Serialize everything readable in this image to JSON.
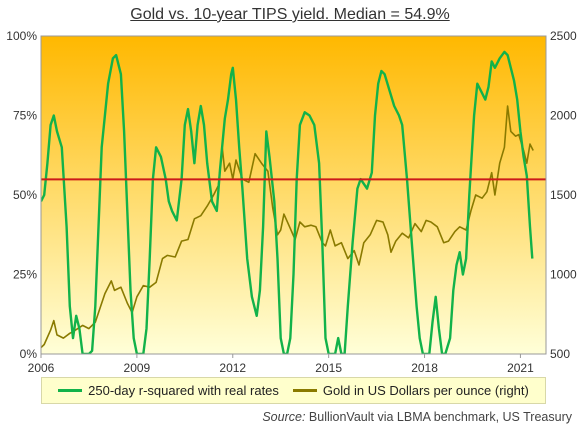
{
  "title": "Gold vs. 10-year TIPS  yield. Median = 54.9%",
  "colors": {
    "rsquared": "#12b24a",
    "gold": "#8a7a00",
    "median": "#cc1a1a",
    "bg_top": "#ffb800",
    "bg_bottom": "#ffffd8"
  },
  "legend": {
    "rsquared_label": "250-day r-squared with real rates",
    "gold_label": "Gold in US Dollars per ounce (right)"
  },
  "source": {
    "prefix": "Source:",
    "text": " BullionVault via LBMA benchmark, US Treasury"
  },
  "chart_data": {
    "type": "line",
    "title": "Gold vs. 10-year TIPS  yield. Median = 54.9%",
    "x_ticks": [
      "2006",
      "2009",
      "2012",
      "2015",
      "2018",
      "2021"
    ],
    "x_tick_values": [
      2006,
      2009,
      2012,
      2015,
      2018,
      2021
    ],
    "xlim": [
      2006,
      2021.8
    ],
    "y_left": {
      "ticks": [
        "0%",
        "25%",
        "50%",
        "75%",
        "100%"
      ],
      "tick_values": [
        0,
        25,
        50,
        75,
        100
      ],
      "lim": [
        0,
        100
      ]
    },
    "y_right": {
      "ticks": [
        "500",
        "1000",
        "1500",
        "2000",
        "2500"
      ],
      "tick_values": [
        500,
        1000,
        1500,
        2000,
        2500
      ],
      "lim": [
        500,
        2500
      ]
    },
    "median": 54.9,
    "grid": false,
    "legend_position": "bottom",
    "series": [
      {
        "name": "250-day r-squared with real rates",
        "axis": "left",
        "points": [
          [
            2006.0,
            48
          ],
          [
            2006.1,
            50
          ],
          [
            2006.2,
            60
          ],
          [
            2006.3,
            72
          ],
          [
            2006.4,
            75
          ],
          [
            2006.5,
            70
          ],
          [
            2006.65,
            65
          ],
          [
            2006.8,
            40
          ],
          [
            2006.9,
            15
          ],
          [
            2007.0,
            5
          ],
          [
            2007.1,
            12
          ],
          [
            2007.2,
            8
          ],
          [
            2007.3,
            0
          ],
          [
            2007.5,
            0
          ],
          [
            2007.6,
            1
          ],
          [
            2007.7,
            15
          ],
          [
            2007.8,
            40
          ],
          [
            2007.9,
            65
          ],
          [
            2008.0,
            75
          ],
          [
            2008.1,
            85
          ],
          [
            2008.25,
            93
          ],
          [
            2008.35,
            94
          ],
          [
            2008.5,
            88
          ],
          [
            2008.6,
            70
          ],
          [
            2008.7,
            45
          ],
          [
            2008.8,
            20
          ],
          [
            2008.9,
            5
          ],
          [
            2009.0,
            0
          ],
          [
            2009.2,
            0
          ],
          [
            2009.3,
            8
          ],
          [
            2009.4,
            30
          ],
          [
            2009.5,
            55
          ],
          [
            2009.6,
            65
          ],
          [
            2009.75,
            62
          ],
          [
            2009.9,
            55
          ],
          [
            2010.0,
            48
          ],
          [
            2010.1,
            45
          ],
          [
            2010.25,
            42
          ],
          [
            2010.4,
            55
          ],
          [
            2010.5,
            72
          ],
          [
            2010.6,
            77
          ],
          [
            2010.7,
            70
          ],
          [
            2010.8,
            60
          ],
          [
            2010.9,
            72
          ],
          [
            2011.0,
            78
          ],
          [
            2011.1,
            72
          ],
          [
            2011.2,
            60
          ],
          [
            2011.35,
            48
          ],
          [
            2011.5,
            45
          ],
          [
            2011.6,
            58
          ],
          [
            2011.75,
            74
          ],
          [
            2011.85,
            80
          ],
          [
            2011.95,
            88
          ],
          [
            2012.0,
            90
          ],
          [
            2012.1,
            80
          ],
          [
            2012.2,
            65
          ],
          [
            2012.3,
            52
          ],
          [
            2012.45,
            30
          ],
          [
            2012.6,
            18
          ],
          [
            2012.75,
            12
          ],
          [
            2012.85,
            20
          ],
          [
            2012.95,
            40
          ],
          [
            2013.05,
            70
          ],
          [
            2013.15,
            62
          ],
          [
            2013.3,
            48
          ],
          [
            2013.4,
            30
          ],
          [
            2013.5,
            5
          ],
          [
            2013.6,
            0
          ],
          [
            2013.7,
            0
          ],
          [
            2013.8,
            5
          ],
          [
            2013.9,
            25
          ],
          [
            2014.0,
            55
          ],
          [
            2014.1,
            72
          ],
          [
            2014.25,
            76
          ],
          [
            2014.4,
            75
          ],
          [
            2014.55,
            72
          ],
          [
            2014.7,
            60
          ],
          [
            2014.8,
            35
          ],
          [
            2014.9,
            5
          ],
          [
            2015.0,
            0
          ],
          [
            2015.2,
            0
          ],
          [
            2015.3,
            5
          ],
          [
            2015.4,
            0
          ],
          [
            2015.5,
            0
          ],
          [
            2015.6,
            15
          ],
          [
            2015.75,
            35
          ],
          [
            2015.9,
            52
          ],
          [
            2016.0,
            55
          ],
          [
            2016.2,
            52
          ],
          [
            2016.35,
            57
          ],
          [
            2016.45,
            75
          ],
          [
            2016.55,
            85
          ],
          [
            2016.65,
            89
          ],
          [
            2016.75,
            88
          ],
          [
            2016.9,
            83
          ],
          [
            2017.05,
            78
          ],
          [
            2017.2,
            75
          ],
          [
            2017.3,
            72
          ],
          [
            2017.45,
            55
          ],
          [
            2017.6,
            35
          ],
          [
            2017.75,
            15
          ],
          [
            2017.85,
            5
          ],
          [
            2017.95,
            0
          ],
          [
            2018.15,
            0
          ],
          [
            2018.25,
            10
          ],
          [
            2018.35,
            18
          ],
          [
            2018.45,
            8
          ],
          [
            2018.55,
            0
          ],
          [
            2018.65,
            0
          ],
          [
            2018.8,
            5
          ],
          [
            2018.9,
            20
          ],
          [
            2019.0,
            28
          ],
          [
            2019.1,
            32
          ],
          [
            2019.2,
            25
          ],
          [
            2019.3,
            30
          ],
          [
            2019.4,
            50
          ],
          [
            2019.55,
            75
          ],
          [
            2019.65,
            85
          ],
          [
            2019.8,
            82
          ],
          [
            2019.9,
            80
          ],
          [
            2020.0,
            84
          ],
          [
            2020.1,
            92
          ],
          [
            2020.2,
            90
          ],
          [
            2020.35,
            93
          ],
          [
            2020.5,
            95
          ],
          [
            2020.6,
            94
          ],
          [
            2020.7,
            90
          ],
          [
            2020.8,
            86
          ],
          [
            2020.9,
            80
          ],
          [
            2021.0,
            70
          ],
          [
            2021.1,
            62
          ],
          [
            2021.2,
            56
          ],
          [
            2021.3,
            40
          ],
          [
            2021.37,
            30
          ]
        ]
      },
      {
        "name": "Gold in US Dollars per ounce (right)",
        "axis": "right",
        "points": [
          [
            2006.0,
            540
          ],
          [
            2006.1,
            560
          ],
          [
            2006.3,
            650
          ],
          [
            2006.4,
            710
          ],
          [
            2006.5,
            620
          ],
          [
            2006.7,
            600
          ],
          [
            2006.9,
            630
          ],
          [
            2007.0,
            640
          ],
          [
            2007.3,
            680
          ],
          [
            2007.5,
            660
          ],
          [
            2007.7,
            700
          ],
          [
            2007.85,
            790
          ],
          [
            2008.0,
            880
          ],
          [
            2008.2,
            960
          ],
          [
            2008.3,
            900
          ],
          [
            2008.5,
            920
          ],
          [
            2008.7,
            820
          ],
          [
            2008.85,
            760
          ],
          [
            2009.0,
            860
          ],
          [
            2009.2,
            930
          ],
          [
            2009.4,
            920
          ],
          [
            2009.6,
            950
          ],
          [
            2009.8,
            1100
          ],
          [
            2009.95,
            1120
          ],
          [
            2010.2,
            1110
          ],
          [
            2010.4,
            1210
          ],
          [
            2010.6,
            1220
          ],
          [
            2010.8,
            1350
          ],
          [
            2011.0,
            1370
          ],
          [
            2011.2,
            1430
          ],
          [
            2011.4,
            1500
          ],
          [
            2011.55,
            1560
          ],
          [
            2011.67,
            1800
          ],
          [
            2011.75,
            1650
          ],
          [
            2011.9,
            1700
          ],
          [
            2012.0,
            1600
          ],
          [
            2012.1,
            1720
          ],
          [
            2012.3,
            1600
          ],
          [
            2012.5,
            1580
          ],
          [
            2012.7,
            1760
          ],
          [
            2012.9,
            1700
          ],
          [
            2013.1,
            1650
          ],
          [
            2013.25,
            1420
          ],
          [
            2013.4,
            1250
          ],
          [
            2013.5,
            1280
          ],
          [
            2013.6,
            1380
          ],
          [
            2013.8,
            1290
          ],
          [
            2013.95,
            1220
          ],
          [
            2014.1,
            1330
          ],
          [
            2014.25,
            1300
          ],
          [
            2014.45,
            1310
          ],
          [
            2014.6,
            1300
          ],
          [
            2014.8,
            1200
          ],
          [
            2014.9,
            1180
          ],
          [
            2015.05,
            1280
          ],
          [
            2015.2,
            1180
          ],
          [
            2015.4,
            1200
          ],
          [
            2015.6,
            1100
          ],
          [
            2015.8,
            1150
          ],
          [
            2015.95,
            1060
          ],
          [
            2016.1,
            1200
          ],
          [
            2016.3,
            1250
          ],
          [
            2016.5,
            1340
          ],
          [
            2016.7,
            1330
          ],
          [
            2016.85,
            1250
          ],
          [
            2016.95,
            1140
          ],
          [
            2017.1,
            1210
          ],
          [
            2017.3,
            1260
          ],
          [
            2017.5,
            1230
          ],
          [
            2017.7,
            1320
          ],
          [
            2017.9,
            1270
          ],
          [
            2018.05,
            1340
          ],
          [
            2018.2,
            1330
          ],
          [
            2018.4,
            1300
          ],
          [
            2018.6,
            1200
          ],
          [
            2018.75,
            1210
          ],
          [
            2018.95,
            1270
          ],
          [
            2019.1,
            1300
          ],
          [
            2019.3,
            1280
          ],
          [
            2019.45,
            1400
          ],
          [
            2019.6,
            1500
          ],
          [
            2019.8,
            1480
          ],
          [
            2019.95,
            1520
          ],
          [
            2020.1,
            1640
          ],
          [
            2020.2,
            1500
          ],
          [
            2020.35,
            1700
          ],
          [
            2020.5,
            1800
          ],
          [
            2020.6,
            2060
          ],
          [
            2020.7,
            1900
          ],
          [
            2020.85,
            1870
          ],
          [
            2020.95,
            1880
          ],
          [
            2021.1,
            1780
          ],
          [
            2021.2,
            1700
          ],
          [
            2021.3,
            1820
          ],
          [
            2021.4,
            1780
          ]
        ]
      }
    ]
  }
}
